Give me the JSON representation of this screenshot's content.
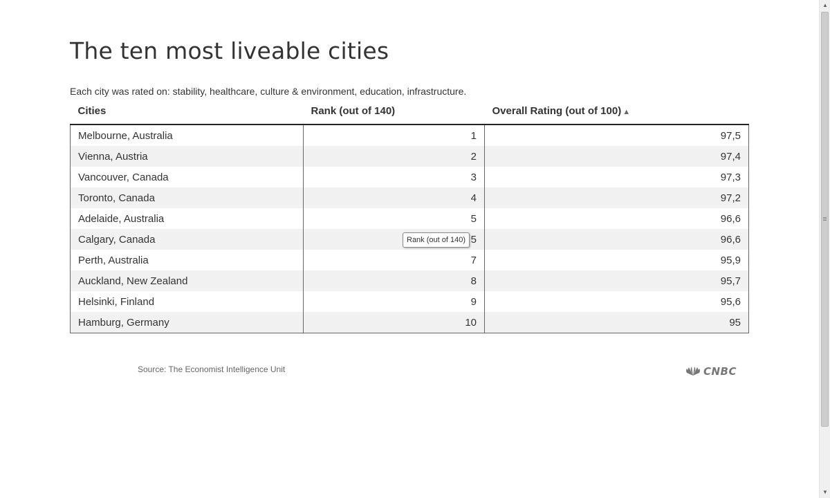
{
  "title": "The ten most liveable cities",
  "subtitle": "Each city was rated on: stability, healthcare, culture & environment, education, infrastructure.",
  "table": {
    "columns": [
      "Cities",
      "Rank (out of 140)",
      "Overall Rating (out of 100)"
    ],
    "sort_indicator": "▲",
    "rows": [
      {
        "city": "Melbourne, Australia",
        "rank": "1",
        "rating": "97,5"
      },
      {
        "city": "Vienna, Austria",
        "rank": "2",
        "rating": "97,4"
      },
      {
        "city": "Vancouver, Canada",
        "rank": "3",
        "rating": "97,3"
      },
      {
        "city": "Toronto, Canada",
        "rank": "4",
        "rating": "97,2"
      },
      {
        "city": "Adelaide, Australia",
        "rank": "5",
        "rating": "96,6"
      },
      {
        "city": "Calgary, Canada",
        "rank": "5",
        "rating": "96,6"
      },
      {
        "city": "Perth, Australia",
        "rank": "7",
        "rating": "95,9"
      },
      {
        "city": "Auckland, New Zealand",
        "rank": "8",
        "rating": "95,7"
      },
      {
        "city": "Helsinki, Finland",
        "rank": "9",
        "rating": "95,6"
      },
      {
        "city": "Hamburg, Germany",
        "rank": "10",
        "rating": "95"
      }
    ]
  },
  "tooltip": "Rank (out of 140)",
  "source": "Source: The Economist Intelligence Unit",
  "logo": {
    "text": "CNBC",
    "icon": "peacock-icon"
  },
  "colors": {
    "row_stripe": "#f1f1f1",
    "text": "#333333",
    "header_rule": "#222222"
  }
}
